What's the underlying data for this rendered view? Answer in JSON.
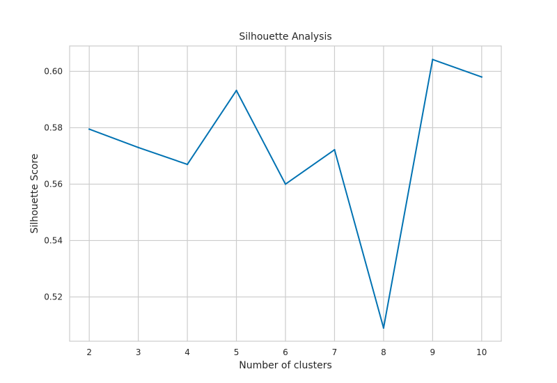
{
  "chart_data": {
    "type": "line",
    "title": "Silhouette Analysis",
    "xlabel": "Number of clusters",
    "ylabel": "Silhouette Score",
    "x": [
      2,
      3,
      4,
      5,
      6,
      7,
      8,
      9,
      10
    ],
    "series": [
      {
        "values": [
          0.5795,
          0.573,
          0.567,
          0.5932,
          0.56,
          0.5722,
          0.509,
          0.6042,
          0.598
        ],
        "color": "#0072b2"
      }
    ],
    "xticks": [
      "2",
      "3",
      "4",
      "5",
      "6",
      "7",
      "8",
      "9",
      "10"
    ],
    "yticks": [
      "0.52",
      "0.54",
      "0.56",
      "0.58",
      "0.60"
    ],
    "xlim": [
      1.6,
      10.4
    ],
    "ylim": [
      0.5043,
      0.609
    ],
    "grid": true,
    "colors": {
      "grid": "#cccccc",
      "spine": "#cccccc",
      "text": "#262626"
    }
  }
}
